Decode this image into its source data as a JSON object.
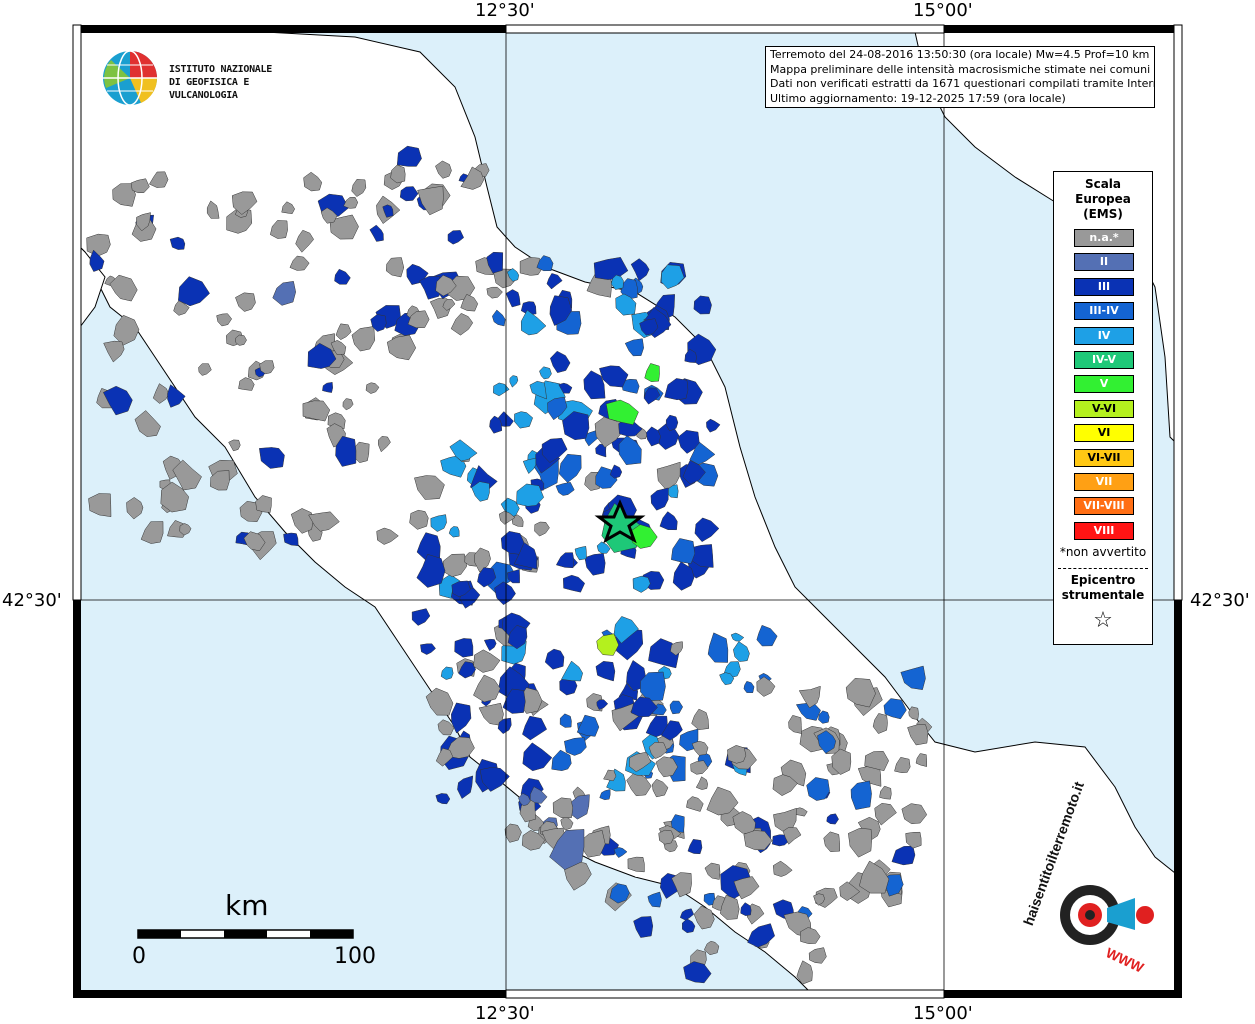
{
  "title_box": {
    "line1": "Terremoto del 24-08-2016 13:50:30 (ora locale) Mw=4.5 Prof=10 km",
    "line2": "Mappa preliminare delle intensità macrosismiche stimate nei comuni",
    "line3": "Dati non verificati estratti da 1671 questionari compilati tramite Internet.",
    "line4": "Ultimo aggiornamento: 19-12-2025 17:59 (ora locale)"
  },
  "logo": {
    "line1": "ISTITUTO NAZIONALE",
    "line2": "DI GEOFISICA E VULCANOLOGIA"
  },
  "axes": {
    "top_left": "12°30'",
    "top_right": "15°00'",
    "bottom_left": "12°30'",
    "bottom_right": "15°00'",
    "left": "42°30'",
    "right": "42°30'"
  },
  "legend": {
    "title_line1": "Scala",
    "title_line2": "Europea",
    "title_line3": "(EMS)",
    "items": [
      {
        "label": "n.a.*",
        "color": "#999999"
      },
      {
        "label": "II",
        "color": "#5470b4"
      },
      {
        "label": "III",
        "color": "#0a32b4"
      },
      {
        "label": "III-IV",
        "color": "#1464d2"
      },
      {
        "label": "IV",
        "color": "#1ea0e6"
      },
      {
        "label": "IV-V",
        "color": "#1ec878"
      },
      {
        "label": "V",
        "color": "#32f032"
      },
      {
        "label": "V-VI",
        "color": "#b4f01e"
      },
      {
        "label": "VI",
        "color": "#ffff00"
      },
      {
        "label": "VI-VII",
        "color": "#ffc814"
      },
      {
        "label": "VII",
        "color": "#ffa014"
      },
      {
        "label": "VII-VIII",
        "color": "#ff6e14"
      },
      {
        "label": "VIII",
        "color": "#ff1414"
      }
    ],
    "note": "*non avvertito",
    "epicenter_line1": "Epicentro",
    "epicenter_line2": "strumentale",
    "epicenter_symbol": "☆"
  },
  "scale_bar": {
    "unit": "km",
    "start": "0",
    "end": "100"
  },
  "hsm_logo": {
    "text": "haisentitoilterremoto.it",
    "www": "WWW"
  },
  "colors": {
    "sea": "#dcf0fa",
    "land": "#ffffff",
    "na": "#999999",
    "ii": "#5470b4",
    "iii": "#0a32b4",
    "iii_iv": "#1464d2",
    "iv": "#1ea0e6",
    "iv_v": "#1ec878",
    "v": "#32f032",
    "v_vi": "#b4f01e"
  }
}
